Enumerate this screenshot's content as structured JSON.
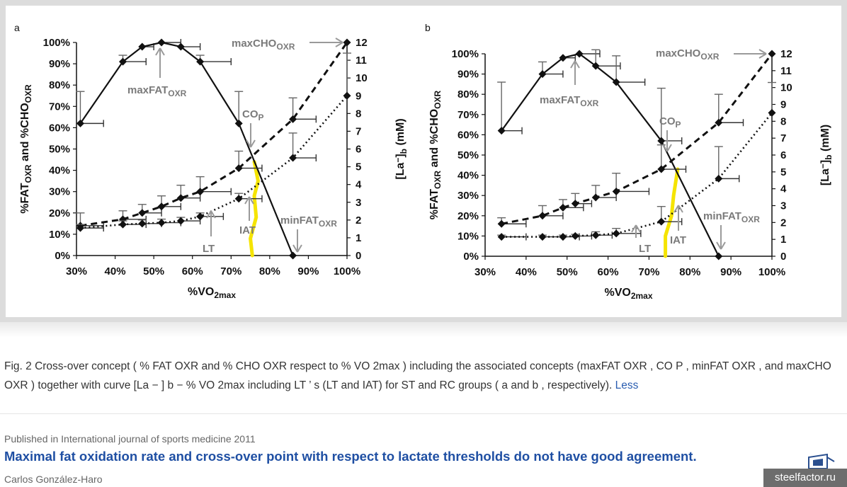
{
  "figure": {
    "panel_a_letter": "a",
    "panel_b_letter": "b"
  },
  "chart_data": [
    {
      "panel": "a",
      "type": "line",
      "xlabel": "%VO2max",
      "ylabel_left": "%FATOXR and %CHOOXR",
      "ylabel_right": "[La−]b (mM)",
      "xlim": [
        30,
        100
      ],
      "ylim_left": [
        0,
        100
      ],
      "ylim_right": [
        0,
        12
      ],
      "x_ticks": [
        "30%",
        "40%",
        "50%",
        "60%",
        "70%",
        "80%",
        "90%",
        "100%"
      ],
      "y_left_ticks": [
        "0%",
        "10%",
        "20%",
        "30%",
        "40%",
        "50%",
        "60%",
        "70%",
        "80%",
        "90%",
        "100%"
      ],
      "y_right_ticks": [
        "0",
        "1",
        "2",
        "3",
        "4",
        "5",
        "6",
        "7",
        "8",
        "9",
        "10",
        "11",
        "12"
      ],
      "series": [
        {
          "style": "solid",
          "axis": "left",
          "points": [
            [
              31,
              62
            ],
            [
              42,
              91
            ],
            [
              47,
              98
            ],
            [
              52,
              100
            ],
            [
              57,
              98
            ],
            [
              62,
              91
            ],
            [
              72,
              62
            ],
            [
              86,
              0
            ]
          ],
          "error_y": [
            15,
            3,
            0,
            0,
            0,
            3,
            15,
            0
          ],
          "error_x": [
            6,
            6,
            3,
            5,
            5,
            8,
            0,
            0
          ]
        },
        {
          "style": "dashed",
          "axis": "left",
          "points": [
            [
              31,
              14
            ],
            [
              42,
              17
            ],
            [
              47,
              20
            ],
            [
              52,
              23
            ],
            [
              57,
              27
            ],
            [
              62,
              30
            ],
            [
              72,
              41
            ],
            [
              86,
              64
            ],
            [
              100,
              100
            ]
          ],
          "error_y": [
            6,
            4,
            4,
            5,
            6,
            7,
            8,
            10,
            0
          ],
          "error_x": [
            6,
            6,
            5,
            5,
            5,
            8,
            6,
            6,
            0
          ]
        },
        {
          "style": "dotted",
          "axis": "right",
          "points": [
            [
              31,
              1.55
            ],
            [
              42,
              1.75
            ],
            [
              47,
              1.8
            ],
            [
              52,
              1.85
            ],
            [
              57,
              1.95
            ],
            [
              62,
              2.2
            ],
            [
              72,
              3.2
            ],
            [
              86,
              5.5
            ],
            [
              100,
              9
            ]
          ],
          "error_y": [
            0.2,
            0.2,
            0.2,
            0.2,
            0.2,
            0.2,
            0.3,
            1.4,
            2.4
          ],
          "error_x": [
            6,
            6,
            5,
            5,
            5,
            6,
            6,
            6,
            0
          ]
        }
      ],
      "annotations": [
        {
          "text": "maxCHO",
          "sub": "OXR"
        },
        {
          "text": "maxFAT",
          "sub": "OXR"
        },
        {
          "text": "CO",
          "sub": "P"
        },
        {
          "text": "minFAT",
          "sub": "OXR"
        },
        {
          "text": "LT",
          "sub": ""
        },
        {
          "text": "IAT",
          "sub": ""
        }
      ]
    },
    {
      "panel": "b",
      "type": "line",
      "xlabel": "%VO2max",
      "ylabel_left": "%FATOXR and %CHOOXR",
      "ylabel_right": "[La−]b (mM)",
      "xlim": [
        30,
        100
      ],
      "ylim_left": [
        0,
        100
      ],
      "ylim_right": [
        0,
        12
      ],
      "x_ticks": [
        "30%",
        "40%",
        "50%",
        "60%",
        "70%",
        "80%",
        "90%",
        "100%"
      ],
      "y_left_ticks": [
        "0%",
        "10%",
        "20%",
        "30%",
        "40%",
        "50%",
        "60%",
        "70%",
        "80%",
        "90%",
        "100%"
      ],
      "y_right_ticks": [
        "0",
        "1",
        "2",
        "3",
        "4",
        "5",
        "6",
        "7",
        "8",
        "9",
        "10",
        "11",
        "12"
      ],
      "series": [
        {
          "style": "solid",
          "axis": "left",
          "points": [
            [
              34,
              62
            ],
            [
              44,
              90
            ],
            [
              49,
              98
            ],
            [
              53,
              100
            ],
            [
              57,
              94
            ],
            [
              62,
              86
            ],
            [
              73,
              57
            ],
            [
              87,
              0
            ]
          ],
          "error_y": [
            24,
            6,
            0,
            0,
            8,
            13,
            26,
            0
          ],
          "error_x": [
            5,
            5,
            3,
            5,
            6,
            7,
            5,
            0
          ]
        },
        {
          "style": "dashed",
          "axis": "left",
          "points": [
            [
              34,
              16
            ],
            [
              44,
              20
            ],
            [
              49,
              24
            ],
            [
              52,
              26
            ],
            [
              57,
              29
            ],
            [
              62,
              32
            ],
            [
              73,
              43
            ],
            [
              87,
              66
            ],
            [
              100,
              100
            ]
          ],
          "error_y": [
            3,
            5,
            4,
            5,
            6,
            9,
            12,
            14,
            0
          ],
          "error_x": [
            6,
            5,
            5,
            4,
            5,
            8,
            6,
            6,
            0
          ]
        },
        {
          "style": "dotted",
          "axis": "right",
          "points": [
            [
              34,
              1.15
            ],
            [
              44,
              1.15
            ],
            [
              49,
              1.15
            ],
            [
              52,
              1.2
            ],
            [
              57,
              1.25
            ],
            [
              62,
              1.35
            ],
            [
              73,
              2.05
            ],
            [
              87,
              4.6
            ],
            [
              100,
              8.5
            ]
          ],
          "error_y": [
            0.1,
            0.1,
            0.1,
            0.1,
            0.2,
            0.3,
            0.9,
            1.9,
            1.8
          ],
          "error_x": [
            6,
            5,
            4,
            4,
            4,
            6,
            5,
            5,
            0
          ]
        }
      ],
      "annotations": [
        {
          "text": "maxCHO",
          "sub": "OXR"
        },
        {
          "text": "maxFAT",
          "sub": "OXR"
        },
        {
          "text": "CO",
          "sub": "P"
        },
        {
          "text": "minFAT",
          "sub": "OXR"
        },
        {
          "text": "LT",
          "sub": ""
        },
        {
          "text": "IAT",
          "sub": ""
        }
      ]
    }
  ],
  "caption": {
    "text": "Fig. 2 Cross-over concept ( % FAT OXR and % CHO OXR respect to % VO 2max ) including the associated concepts (maxFAT OXR , CO P , minFAT OXR , and maxCHO OXR ) together with curve [La − ] b − % VO 2max including LT ’ s (LT and IAT) for ST and RC groups ( a and b , respectively).",
    "less_label": "Less"
  },
  "publication": {
    "published_in": "Published in International journal of sports medicine 2011",
    "title": "Maximal fat oxidation rate and cross-over point with respect to lactate thresholds do not have good agreement.",
    "author": "Carlos González-Haro"
  },
  "watermark": {
    "text": "steelfactor.ru"
  }
}
